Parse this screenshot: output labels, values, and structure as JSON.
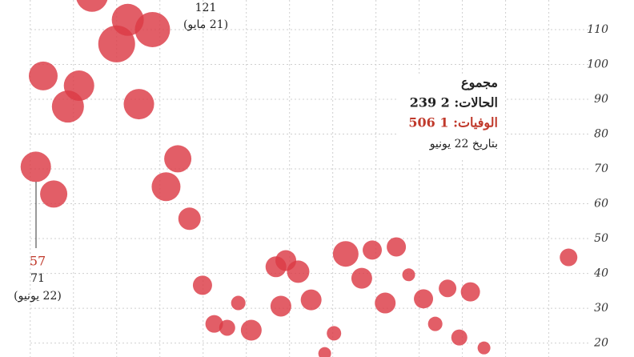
{
  "chart_data": {
    "type": "bubble",
    "series": [
      {
        "color": "#dc3b45",
        "x": [
          10,
          15.8,
          19.8,
          14,
          2.1,
          7.9,
          6.1,
          17.6,
          0.9,
          3.8,
          23.9,
          22,
          25.8,
          27.9,
          29.8,
          31.9,
          33.7,
          35.8,
          39.8,
          41.4,
          43.4,
          40.6,
          45.5,
          49.2,
          47.7,
          51.1,
          53.7,
          55.4,
          57.5,
          59.3,
          61.3,
          63.7,
          65.6,
          67.6,
          69.5,
          71.3,
          73.5,
          87.2
        ],
        "values": [
          119.7,
          112.8,
          110,
          105.9,
          96.7,
          93.9,
          87.9,
          88.6,
          70.6,
          62.8,
          72.9,
          64.9,
          55.7,
          36.6,
          25.5,
          24.4,
          31.5,
          23.7,
          41.9,
          43.7,
          40.5,
          30.6,
          32.4,
          22.8,
          17,
          45.6,
          38.6,
          46.7,
          31.5,
          47.6,
          39.6,
          32.7,
          25.5,
          35.7,
          21.6,
          34.7,
          18.6,
          44.6
        ],
        "sizes": [
          20,
          20,
          22,
          23,
          18,
          19,
          20,
          19,
          19,
          17,
          17,
          18,
          14,
          12,
          11,
          10,
          9,
          13,
          13,
          13,
          14,
          13,
          13,
          9,
          8,
          16,
          13,
          12,
          13,
          12,
          8,
          12,
          9,
          11,
          10,
          12,
          8,
          11
        ]
      }
    ],
    "xlim": [
      -4.9,
      97.8
    ],
    "xticks": [
      0,
      7,
      14,
      21,
      28,
      35,
      42,
      49,
      56,
      63,
      70,
      77,
      84
    ],
    "ylim": [
      16,
      118.5
    ],
    "yticks": [
      20,
      30,
      40,
      50,
      60,
      70,
      80,
      90,
      100,
      110
    ],
    "grid": true,
    "annotations": {
      "peak_value": "121",
      "peak_date": "(21 مايو)",
      "last_deaths": "57",
      "last_value": "71",
      "last_date": "(22 يونيو)"
    },
    "totals": {
      "heading": "مجموع",
      "cases": "الحالات: 2 239",
      "deaths": "الوفيات: 1 506",
      "date": "بتاريخ 22 يونيو"
    }
  }
}
